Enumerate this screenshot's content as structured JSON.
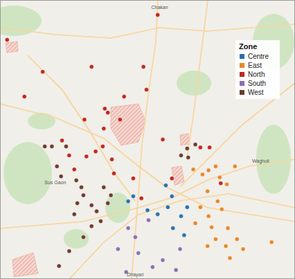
{
  "chart_data": {
    "type": "scatter",
    "legend_title": "Zone",
    "legend": "upper right",
    "tick_labels": false,
    "grid": false,
    "xlim": [
      73.7,
      73.99
    ],
    "ylim": [
      18.44,
      18.72
    ],
    "marker": "circle",
    "series": [
      {
        "name": "Centre",
        "color": "#2a6fb0",
        "x": [
          73.831,
          73.826,
          73.863,
          73.869,
          73.855,
          73.845,
          73.884,
          73.878,
          73.87,
          73.881,
          73.865
        ],
        "values": [
          18.523,
          18.518,
          18.534,
          18.523,
          18.505,
          18.509,
          18.512,
          18.503,
          18.491,
          18.484,
          18.512
        ]
      },
      {
        "name": "East",
        "color": "#e8872b",
        "x": [
          73.89,
          73.899,
          73.905,
          73.912,
          73.916,
          73.923,
          73.904,
          73.914,
          73.897,
          73.905,
          73.918,
          73.924,
          73.933,
          73.922,
          73.912,
          73.904,
          73.939,
          73.926,
          73.967,
          73.892,
          73.908,
          73.931
        ],
        "values": [
          18.55,
          18.545,
          18.549,
          18.553,
          18.542,
          18.535,
          18.528,
          18.518,
          18.512,
          18.503,
          18.51,
          18.491,
          18.48,
          18.473,
          18.48,
          18.473,
          18.47,
          18.461,
          18.477,
          18.496,
          18.492,
          18.553
        ]
      },
      {
        "name": "North",
        "color": "#c0261f",
        "x": [
          73.855,
          73.707,
          73.742,
          73.79,
          73.841,
          73.844,
          73.803,
          73.806,
          73.783,
          73.802,
          73.818,
          73.761,
          73.768,
          73.773,
          73.785,
          73.794,
          73.801,
          73.81,
          73.812,
          73.86,
          73.897,
          73.906,
          73.917,
          73.831,
          73.839,
          73.724,
          73.869,
          73.822
        ],
        "values": [
          18.705,
          18.68,
          18.648,
          18.653,
          18.653,
          18.63,
          18.611,
          18.607,
          18.6,
          18.591,
          18.6,
          18.579,
          18.564,
          18.55,
          18.563,
          18.568,
          18.573,
          18.56,
          18.546,
          18.58,
          18.572,
          18.572,
          18.536,
          18.541,
          18.521,
          18.623,
          18.541,
          18.623
        ]
      },
      {
        "name": "South",
        "color": "#8a6fb3",
        "x": [
          73.826,
          73.846,
          73.833,
          73.836,
          73.816,
          73.86,
          73.877,
          73.873,
          73.85,
          73.824
        ],
        "values": [
          18.491,
          18.499,
          18.482,
          18.466,
          18.47,
          18.459,
          18.47,
          18.449,
          18.452,
          18.447
        ]
      },
      {
        "name": "West",
        "color": "#6d3b2e",
        "x": [
          73.744,
          73.751,
          73.765,
          73.756,
          73.76,
          73.775,
          73.78,
          73.782,
          73.776,
          73.79,
          73.795,
          73.802,
          73.809,
          73.806,
          73.799,
          73.79,
          73.773,
          73.782,
          73.768,
          73.758,
          73.884,
          73.892,
          73.885,
          73.878
        ],
        "values": [
          18.573,
          18.573,
          18.573,
          18.553,
          18.543,
          18.539,
          18.532,
          18.524,
          18.516,
          18.514,
          18.508,
          18.532,
          18.524,
          18.516,
          18.498,
          18.493,
          18.505,
          18.482,
          18.468,
          18.453,
          18.571,
          18.575,
          18.562,
          18.564
        ]
      }
    ],
    "annotations": [
      {
        "text": "Chakan",
        "x": 73.846,
        "y": 18.713
      },
      {
        "text": "Sus Gaon",
        "x": 73.741,
        "y": 18.537
      },
      {
        "text": "Wagholi",
        "x": 73.945,
        "y": 18.559
      },
      {
        "text": "Dhayari",
        "x": 73.822,
        "y": 18.445
      }
    ]
  }
}
